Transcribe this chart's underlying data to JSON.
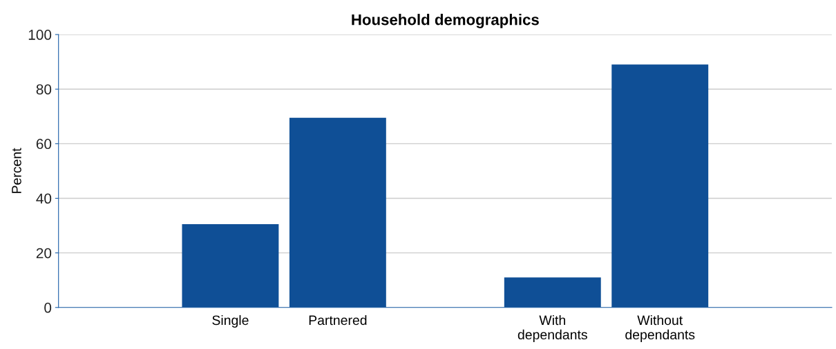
{
  "chart_data": {
    "type": "bar",
    "title": "Household demographics",
    "ylabel": "Percent",
    "categories": [
      null,
      "Single",
      "Partnered",
      null,
      "With\ndependants",
      "Without\ndependants",
      null
    ],
    "values": [
      null,
      30.5,
      69.5,
      null,
      11,
      89,
      null
    ],
    "color": "#0f4f96",
    "ylim": [
      0,
      100
    ],
    "yticks": [
      0,
      20,
      40,
      60,
      80,
      100
    ],
    "grid": "y",
    "legend": false
  }
}
